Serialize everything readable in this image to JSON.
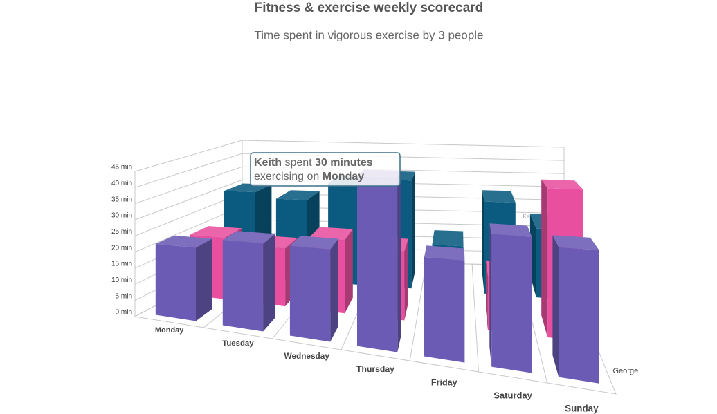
{
  "chart_data": {
    "type": "bar3d",
    "title": "Fitness & exercise weekly scorecard",
    "subtitle": "Time spent in vigorous exercise by 3 people",
    "categories": [
      "Monday",
      "Tuesday",
      "Wednesday",
      "Thursday",
      "Friday",
      "Saturday",
      "Sunday"
    ],
    "series": [
      {
        "name": "Keith",
        "color": "#0b5a80",
        "values": [
          30,
          28,
          34,
          36,
          15,
          30,
          22
        ]
      },
      {
        "color": "#e8509f",
        "values": [
          20,
          18,
          22,
          20,
          10,
          15,
          40
        ]
      },
      {
        "name": "George",
        "color": "#6b5bb5",
        "values": [
          22,
          25,
          25,
          45,
          25,
          32,
          30
        ]
      }
    ],
    "ylim": [
      0,
      45
    ],
    "yticks": [
      {
        "value": 0,
        "label": "0 min"
      },
      {
        "value": 5,
        "label": "5 min"
      },
      {
        "value": 10,
        "label": "10 min"
      },
      {
        "value": 15,
        "label": "15 min"
      },
      {
        "value": 20,
        "label": "20 min"
      },
      {
        "value": 25,
        "label": "25 min"
      },
      {
        "value": 30,
        "label": "30 min"
      },
      {
        "value": 35,
        "label": "35 min"
      },
      {
        "value": 40,
        "label": "40 min"
      },
      {
        "value": 45,
        "label": "45 min"
      }
    ],
    "grid": true,
    "tooltip": {
      "line1": [
        "Keith",
        " spent ",
        "30 minutes"
      ],
      "line2": [
        "exercising on ",
        "Monday"
      ]
    }
  }
}
